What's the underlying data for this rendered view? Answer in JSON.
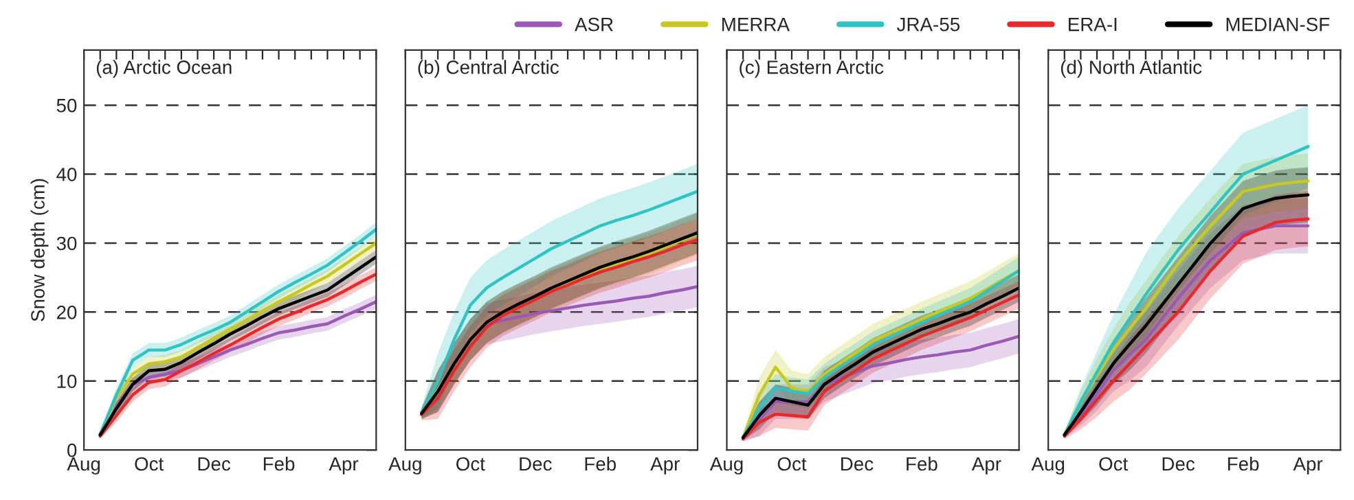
{
  "chart_data": [
    {
      "type": "line",
      "title": "(a) Arctic Ocean",
      "ylabel": "Snow depth (cm)",
      "ylim": [
        0,
        58
      ],
      "yticks": [
        0,
        10,
        20,
        30,
        40,
        50
      ],
      "grid": "y",
      "legend": "top right",
      "categories": [
        "Aug",
        null,
        null,
        null,
        "Oct",
        null,
        null,
        null,
        "Dec",
        null,
        null,
        null,
        "Feb",
        null,
        null,
        null,
        "Apr",
        null,
        null
      ],
      "series": [
        {
          "name": "ASR",
          "color": "#9b59b6",
          "values": [
            null,
            2.2,
            6.5,
            9.5,
            10.5,
            11,
            11.5,
            12.5,
            13.5,
            14.5,
            15.3,
            16.2,
            17,
            17.4,
            17.9,
            18.3,
            19.4,
            20.4,
            21.5
          ],
          "lower": [
            null,
            1.9,
            5.5,
            8.5,
            9.5,
            10,
            10.5,
            11.5,
            12.5,
            13.5,
            14.3,
            15.2,
            16,
            16.4,
            16.9,
            17.3,
            18.4,
            19.4,
            20.5
          ],
          "upper": [
            null,
            2.5,
            7.5,
            10.5,
            11.5,
            12,
            12.5,
            13.5,
            14.5,
            15.5,
            16.3,
            17.2,
            18,
            18.4,
            18.9,
            19.3,
            20.4,
            21.4,
            22.5
          ]
        },
        {
          "name": "MERRA",
          "color": "#c8c81e",
          "values": [
            null,
            2.3,
            7.5,
            11,
            12.5,
            12.8,
            13.5,
            14.8,
            16.2,
            17.5,
            18.8,
            20.2,
            21.5,
            22.7,
            24,
            25.2,
            26.8,
            28.4,
            30
          ],
          "lower": [
            null,
            2.0,
            6.5,
            10,
            11.5,
            11.8,
            12.5,
            13.8,
            15.2,
            16.5,
            17.8,
            19.2,
            20.5,
            21.7,
            23,
            24.2,
            25.8,
            27.4,
            29
          ],
          "upper": [
            null,
            2.6,
            8.5,
            12,
            13.5,
            13.8,
            14.5,
            15.8,
            17.2,
            18.5,
            19.8,
            21.2,
            22.5,
            23.7,
            25,
            26.2,
            27.8,
            29.4,
            31
          ]
        },
        {
          "name": "JRA-55",
          "color": "#2ec4c4",
          "values": [
            null,
            2.3,
            8,
            13,
            14.5,
            14.5,
            15.3,
            16.4,
            17.4,
            18.5,
            20,
            21.5,
            23,
            24.3,
            25.5,
            26.8,
            28.5,
            30.2,
            32
          ],
          "lower": [
            null,
            2.0,
            7,
            12,
            13.5,
            13.5,
            14.3,
            15.4,
            16.4,
            17.5,
            19,
            20.5,
            22,
            23.3,
            24.5,
            25.8,
            27.5,
            29.2,
            31
          ],
          "upper": [
            null,
            2.6,
            9,
            14,
            15.5,
            15.5,
            16.3,
            17.4,
            18.4,
            19.5,
            21,
            22.5,
            24,
            25.3,
            26.5,
            27.8,
            29.5,
            31.2,
            33
          ]
        },
        {
          "name": "ERA-I",
          "color": "#e8282a",
          "values": [
            null,
            2,
            5,
            8,
            9.8,
            10.2,
            11.5,
            12.7,
            14,
            15.2,
            16.5,
            17.8,
            19,
            19.9,
            20.9,
            21.8,
            23,
            24.3,
            25.5
          ],
          "lower": [
            null,
            1.7,
            4,
            7,
            8.8,
            9.2,
            10.5,
            11.7,
            13,
            14.2,
            15.5,
            16.8,
            18,
            18.9,
            19.9,
            20.8,
            22,
            23.3,
            24.5
          ],
          "upper": [
            null,
            2.3,
            6,
            9,
            10.8,
            11.2,
            12.5,
            13.7,
            15,
            16.2,
            17.5,
            18.8,
            20,
            20.9,
            21.9,
            22.8,
            24,
            25.3,
            26.5
          ]
        },
        {
          "name": "MEDIAN-SF",
          "color": "#000000",
          "values": [
            null,
            2.2,
            6,
            9.5,
            11.5,
            11.7,
            12.7,
            14.1,
            15.4,
            16.8,
            18,
            19.3,
            20.5,
            21.4,
            22.3,
            23.2,
            24.8,
            26.4,
            28
          ],
          "lower": [
            null,
            1.9,
            5,
            8.5,
            10.5,
            10.7,
            11.7,
            13.1,
            14.4,
            15.8,
            17,
            18.3,
            19.5,
            20.4,
            21.3,
            22.2,
            23.8,
            25.4,
            27
          ],
          "upper": [
            null,
            2.5,
            7,
            10.5,
            12.5,
            12.7,
            13.7,
            15.1,
            16.4,
            17.8,
            19,
            20.3,
            21.5,
            22.4,
            23.3,
            24.2,
            25.8,
            27.4,
            29
          ]
        }
      ]
    },
    {
      "type": "line",
      "title": "(b) Central Arctic",
      "tick_labels": "x",
      "ylim": [
        0,
        58
      ],
      "yticks": [
        0,
        10,
        20,
        30,
        40,
        50
      ],
      "grid": "y",
      "categories": [
        "Aug",
        null,
        null,
        null,
        "Oct",
        null,
        null,
        null,
        "Dec",
        null,
        null,
        null,
        "Feb",
        null,
        null,
        null,
        "Apr",
        null,
        null
      ],
      "series": [
        {
          "color": "#9b59b6",
          "values": [
            null,
            5.3,
            8.5,
            12.5,
            16,
            18.3,
            18.8,
            19.3,
            19.8,
            20.2,
            20.6,
            21,
            21.3,
            21.6,
            22,
            22.3,
            22.8,
            23.2,
            23.7
          ],
          "lower": [
            null,
            4.5,
            5.5,
            9.5,
            13,
            15.3,
            15.8,
            16.3,
            16.8,
            17.2,
            17.6,
            18,
            18.3,
            18.6,
            19,
            19.3,
            19.8,
            20.2,
            20.7
          ],
          "upper": [
            null,
            6.1,
            11.5,
            15.5,
            19,
            21.3,
            21.8,
            22.3,
            22.8,
            23.2,
            23.6,
            24,
            24.3,
            24.6,
            25,
            25.3,
            25.8,
            26.2,
            26.7
          ]
        },
        {
          "color": "#c8c81e",
          "values": [
            null,
            5.3,
            8.7,
            12.5,
            16,
            18.5,
            20,
            21.1,
            22.2,
            23.3,
            24.3,
            25.3,
            26.3,
            27,
            27.8,
            28.5,
            29.4,
            30.4,
            31.3
          ],
          "lower": [
            null,
            4.5,
            5.7,
            9.5,
            13,
            15.5,
            17,
            18.1,
            19.2,
            20.3,
            21.3,
            22.3,
            23.3,
            24,
            24.8,
            25.5,
            26.4,
            27.4,
            28.3
          ],
          "upper": [
            null,
            6.1,
            11.7,
            15.5,
            19,
            21.5,
            23,
            24.1,
            25.2,
            26.3,
            27.3,
            28.3,
            29.3,
            30,
            30.8,
            31.5,
            32.4,
            33.4,
            34.3
          ]
        },
        {
          "color": "#2ec4c4",
          "values": [
            null,
            5.5,
            10,
            16,
            21,
            23.5,
            25,
            26.4,
            27.8,
            29.2,
            30.3,
            31.4,
            32.5,
            33.3,
            34,
            34.8,
            35.7,
            36.6,
            37.5
          ],
          "lower": [
            null,
            4.7,
            6,
            12,
            17,
            19.5,
            21,
            22.4,
            23.8,
            25.2,
            26.3,
            27.4,
            28.5,
            29.3,
            30,
            30.8,
            31.7,
            32.6,
            33.5
          ],
          "upper": [
            null,
            6.3,
            14,
            20,
            25,
            27.5,
            29,
            30.4,
            31.8,
            33.2,
            34.3,
            35.4,
            36.5,
            37.3,
            38,
            38.8,
            39.7,
            40.6,
            41.5
          ]
        },
        {
          "color": "#e8282a",
          "values": [
            null,
            5.1,
            7.5,
            11.5,
            15,
            17.8,
            19.5,
            20.7,
            21.8,
            23,
            23.9,
            24.9,
            25.8,
            26.5,
            27.3,
            28,
            28.8,
            29.7,
            30.5
          ],
          "lower": [
            null,
            4.3,
            4.5,
            8.5,
            12,
            14.8,
            16.5,
            17.7,
            18.8,
            20,
            20.9,
            21.9,
            22.8,
            23.5,
            24.3,
            25,
            25.8,
            26.7,
            27.5
          ],
          "upper": [
            null,
            5.9,
            10.5,
            14.5,
            18,
            20.8,
            22.5,
            23.7,
            24.8,
            26,
            26.9,
            27.9,
            28.8,
            29.5,
            30.3,
            31,
            31.8,
            32.7,
            33.5
          ]
        },
        {
          "color": "#000000",
          "values": [
            null,
            5.3,
            8.5,
            12.5,
            16,
            18.5,
            20,
            21.2,
            22.3,
            23.5,
            24.5,
            25.5,
            26.5,
            27.3,
            28,
            28.8,
            29.7,
            30.6,
            31.5
          ],
          "lower": [
            null,
            4.5,
            5.5,
            9.5,
            13,
            15.5,
            17,
            18.2,
            19.3,
            20.5,
            21.5,
            22.5,
            23.5,
            24.3,
            25,
            25.8,
            26.7,
            27.6,
            28.5
          ],
          "upper": [
            null,
            6.1,
            11.5,
            15.5,
            19,
            21.5,
            23,
            24.2,
            25.3,
            26.5,
            27.5,
            28.5,
            29.5,
            30.3,
            31,
            31.8,
            32.7,
            33.6,
            34.5
          ]
        }
      ]
    },
    {
      "type": "line",
      "title": "(c) Eastern Arctic",
      "tick_labels": "x",
      "ylim": [
        0,
        58
      ],
      "yticks": [
        0,
        10,
        20,
        30,
        40,
        50
      ],
      "grid": "y",
      "categories": [
        "Aug",
        null,
        null,
        null,
        "Oct",
        null,
        null,
        null,
        "Dec",
        null,
        null,
        null,
        "Feb",
        null,
        null,
        null,
        "Apr",
        null,
        null
      ],
      "series": [
        {
          "color": "#9b59b6",
          "values": [
            null,
            1.8,
            4.5,
            7,
            7,
            7,
            9.5,
            10.4,
            11.3,
            12.2,
            12.6,
            13.1,
            13.5,
            13.8,
            14.2,
            14.5,
            15.2,
            15.8,
            16.5
          ],
          "lower": [
            null,
            1.4,
            2,
            4.5,
            4.5,
            4.5,
            7,
            7.9,
            8.8,
            9.7,
            10.1,
            10.6,
            11,
            11.3,
            11.7,
            12,
            12.7,
            13.3,
            14
          ],
          "upper": [
            null,
            2.2,
            7,
            9.5,
            9.5,
            9.5,
            12,
            12.9,
            13.8,
            14.7,
            15.1,
            15.6,
            16,
            16.3,
            16.7,
            17,
            17.7,
            18.3,
            19
          ]
        },
        {
          "color": "#c8c81e",
          "values": [
            null,
            1.8,
            8,
            12,
            9,
            8.5,
            11,
            12.6,
            14.2,
            15.8,
            16.9,
            17.9,
            19,
            20,
            21,
            22,
            23.3,
            24.7,
            26
          ],
          "lower": [
            null,
            1.4,
            5.5,
            9.5,
            6.5,
            6,
            8.5,
            10.1,
            11.7,
            13.3,
            14.4,
            15.4,
            16.5,
            17.5,
            18.5,
            19.5,
            20.8,
            22.2,
            23.5
          ],
          "upper": [
            null,
            2.2,
            10.5,
            14.5,
            11.5,
            11,
            13.5,
            15.1,
            16.7,
            18.3,
            19.4,
            20.4,
            21.5,
            22.5,
            23.5,
            24.5,
            25.8,
            27.2,
            28.5
          ]
        },
        {
          "color": "#2ec4c4",
          "values": [
            null,
            1.8,
            6,
            9,
            8.5,
            8.2,
            10.5,
            12.1,
            13.6,
            15.2,
            16.3,
            17.4,
            18.5,
            19.5,
            20.5,
            21.5,
            23,
            24.5,
            26
          ],
          "lower": [
            null,
            1.4,
            4,
            7,
            6.5,
            6.2,
            8.5,
            10.1,
            11.6,
            13.2,
            14.3,
            15.4,
            16.5,
            17.5,
            18.5,
            19.5,
            21,
            22.5,
            24
          ],
          "upper": [
            null,
            2.2,
            8,
            11,
            10.5,
            10.2,
            12.5,
            14.1,
            15.6,
            17.2,
            18.3,
            19.4,
            20.5,
            21.5,
            22.5,
            23.5,
            25,
            26.5,
            28
          ]
        },
        {
          "color": "#e8282a",
          "values": [
            null,
            1.6,
            4,
            5.2,
            5,
            4.8,
            8.5,
            10.1,
            11.6,
            13.2,
            14.3,
            15.4,
            16.5,
            17.4,
            18.3,
            19.2,
            20.3,
            21.4,
            22.5
          ],
          "lower": [
            null,
            1.2,
            2,
            3.2,
            3,
            2.8,
            6.5,
            8.1,
            9.6,
            11.2,
            12.3,
            13.4,
            14.5,
            15.4,
            16.3,
            17.2,
            18.3,
            19.4,
            20.5
          ],
          "upper": [
            null,
            2.0,
            6,
            7.2,
            7,
            6.8,
            10.5,
            12.1,
            13.6,
            15.2,
            16.3,
            17.4,
            18.5,
            19.4,
            20.3,
            21.2,
            22.3,
            23.4,
            24.5
          ]
        },
        {
          "color": "#000000",
          "values": [
            null,
            1.8,
            5,
            7.5,
            7,
            6.5,
            9.5,
            11.1,
            12.6,
            14.2,
            15.3,
            16.4,
            17.5,
            18.3,
            19.2,
            20,
            21.2,
            22.3,
            23.5
          ],
          "lower": [
            null,
            1.4,
            3,
            5.5,
            5,
            4.5,
            7.5,
            9.1,
            10.6,
            12.2,
            13.3,
            14.4,
            15.5,
            16.3,
            17.2,
            18,
            19.2,
            20.3,
            21.5
          ],
          "upper": [
            null,
            2.2,
            7,
            9.5,
            9,
            8.5,
            11.5,
            13.1,
            14.6,
            16.2,
            17.3,
            18.4,
            19.5,
            20.3,
            21.2,
            22,
            23.2,
            24.3,
            25.5
          ]
        }
      ]
    },
    {
      "type": "line",
      "title": "(d) North Atlantic",
      "tick_labels": "x",
      "ylim": [
        0,
        58
      ],
      "yticks": [
        0,
        10,
        20,
        30,
        40,
        50
      ],
      "grid": "y",
      "categories": [
        "Aug",
        null,
        null,
        null,
        "Oct",
        null,
        null,
        null,
        "Dec",
        null,
        null,
        null,
        "Feb",
        null,
        null,
        null,
        "Apr",
        null,
        null
      ],
      "series": [
        {
          "color": "#9b59b6",
          "values": [
            null,
            2.2,
            5,
            8.2,
            11.5,
            13.8,
            16,
            19,
            22,
            24.8,
            27.5,
            29.5,
            31.5,
            32,
            32.5,
            32.5,
            32.5,
            null,
            null
          ],
          "lower": [
            null,
            1.8,
            3.5,
            5.7,
            8.5,
            10,
            12,
            15,
            18,
            20.8,
            23.5,
            25.5,
            27.5,
            28,
            28.5,
            28.5,
            28.5,
            null,
            null
          ],
          "upper": [
            null,
            2.6,
            6.5,
            10.7,
            14.5,
            17.6,
            20,
            23,
            26,
            28.8,
            31.5,
            33.5,
            35.5,
            36,
            36.5,
            36.5,
            36.5,
            null,
            null
          ]
        },
        {
          "color": "#c8c81e",
          "values": [
            null,
            2.2,
            7,
            10.8,
            14.5,
            17.5,
            20.5,
            23.8,
            27,
            29.8,
            32.5,
            35,
            37.5,
            38,
            38.5,
            38.8,
            39,
            null,
            null
          ],
          "lower": [
            null,
            1.8,
            5.5,
            8.3,
            11.5,
            13.7,
            16.5,
            19.8,
            23,
            25.8,
            28.5,
            31,
            33.5,
            34,
            34.5,
            34.8,
            35,
            null,
            null
          ],
          "upper": [
            null,
            2.6,
            8.5,
            13.3,
            17.5,
            21.3,
            24.5,
            27.8,
            31,
            33.8,
            36.5,
            39,
            41.5,
            42,
            42.5,
            42.8,
            43,
            null,
            null
          ]
        },
        {
          "color": "#2ec4c4",
          "values": [
            null,
            2.2,
            7,
            11.3,
            15.5,
            19,
            22.5,
            25.8,
            29,
            31.8,
            34.5,
            37.3,
            40,
            41,
            42,
            43,
            44,
            null,
            null
          ],
          "lower": [
            null,
            1.8,
            5,
            8.3,
            11.5,
            14,
            16.5,
            19.8,
            23,
            25.8,
            28.5,
            31.3,
            34,
            35,
            36,
            37,
            38,
            null,
            null
          ],
          "upper": [
            null,
            2.6,
            9,
            14.3,
            19.5,
            24,
            28.5,
            31.8,
            35,
            37.8,
            40.5,
            43.3,
            46,
            47,
            48,
            49,
            50,
            null,
            null
          ]
        },
        {
          "color": "#e8282a",
          "values": [
            null,
            2,
            4.5,
            7.3,
            10,
            12.5,
            15,
            17.5,
            20,
            23,
            26,
            28.5,
            31,
            32,
            33,
            33.3,
            33.5,
            null,
            null
          ],
          "lower": [
            null,
            1.6,
            3,
            4.8,
            7,
            8.7,
            11,
            13.5,
            16,
            19,
            22,
            24.5,
            27,
            28,
            29,
            29.3,
            29.5,
            null,
            null
          ],
          "upper": [
            null,
            2.4,
            6,
            9.8,
            13,
            16.3,
            19,
            21.5,
            24,
            27,
            30,
            32.5,
            35,
            36,
            37,
            37.3,
            37.5,
            null,
            null
          ]
        },
        {
          "color": "#000000",
          "values": [
            null,
            2.2,
            5.5,
            9,
            12.5,
            15.3,
            18,
            21,
            24,
            27,
            30,
            32.5,
            35,
            35.8,
            36.5,
            36.8,
            37,
            null,
            null
          ],
          "lower": [
            null,
            1.8,
            4,
            6.5,
            9.5,
            11.5,
            14,
            17,
            20,
            23,
            26,
            28.5,
            31,
            31.8,
            32.5,
            32.8,
            33,
            null,
            null
          ],
          "upper": [
            null,
            2.6,
            7,
            11.5,
            15.5,
            19.1,
            22,
            25,
            28,
            31,
            34,
            36.5,
            39,
            39.8,
            40.5,
            40.8,
            41,
            null,
            null
          ]
        }
      ]
    }
  ]
}
